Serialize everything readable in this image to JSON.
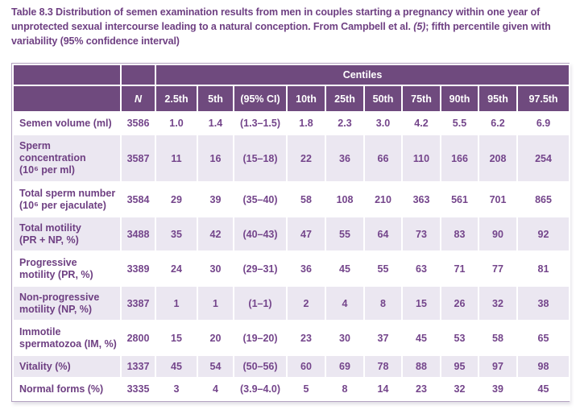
{
  "theme": {
    "header_bg": "#6f4a7e",
    "row_alt_bg": "#ebe7f1",
    "text": "#6e3f82",
    "num_text": "#74458b",
    "outer_border": "#b3a2c0"
  },
  "caption": {
    "before_ref": "Table 8.3 Distribution of semen examination results from men in couples starting a pregnancy within one year of unprotected sexual intercourse leading to a natural conception. From Campbell et al. ",
    "ref": "(5)",
    "after_ref": "; fifth percentile given with variability (95% confidence interval)"
  },
  "table": {
    "centiles_header": "Centiles",
    "n_header": "N",
    "column_headers": [
      "2.5th",
      "5th",
      "(95% CI)",
      "10th",
      "25th",
      "50th",
      "75th",
      "90th",
      "95th",
      "97.5th"
    ],
    "rows": [
      {
        "label_lines": [
          "Semen volume (ml)"
        ],
        "n": "3586",
        "values": [
          "1.0",
          "1.4",
          "(1.3–1.5)",
          "1.8",
          "2.3",
          "3.0",
          "4.2",
          "5.5",
          "6.2",
          "6.9"
        ]
      },
      {
        "label_lines": [
          "Sperm",
          "concentration",
          "(10⁶ per ml)"
        ],
        "n": "3587",
        "values": [
          "11",
          "16",
          "(15–18)",
          "22",
          "36",
          "66",
          "110",
          "166",
          "208",
          "254"
        ]
      },
      {
        "label_lines": [
          "Total sperm number",
          "(10⁶ per ejaculate)"
        ],
        "n": "3584",
        "values": [
          "29",
          "39",
          "(35–40)",
          "58",
          "108",
          "210",
          "363",
          "561",
          "701",
          "865"
        ]
      },
      {
        "label_lines": [
          "Total motility",
          "(PR + NP, %)"
        ],
        "n": "3488",
        "values": [
          "35",
          "42",
          "(40–43)",
          "47",
          "55",
          "64",
          "73",
          "83",
          "90",
          "92"
        ]
      },
      {
        "label_lines": [
          "Progressive",
          "motility (PR, %)"
        ],
        "n": "3389",
        "values": [
          "24",
          "30",
          "(29–31)",
          "36",
          "45",
          "55",
          "63",
          "71",
          "77",
          "81"
        ]
      },
      {
        "label_lines": [
          "Non-progressive",
          "motility (NP, %)"
        ],
        "n": "3387",
        "values": [
          "1",
          "1",
          "(1–1)",
          "2",
          "4",
          "8",
          "15",
          "26",
          "32",
          "38"
        ]
      },
      {
        "label_lines": [
          "Immotile",
          "spermatozoa (IM, %)"
        ],
        "n": "2800",
        "values": [
          "15",
          "20",
          "(19–20)",
          "23",
          "30",
          "37",
          "45",
          "53",
          "58",
          "65"
        ]
      },
      {
        "label_lines": [
          "Vitality (%)"
        ],
        "n": "1337",
        "values": [
          "45",
          "54",
          "(50–56)",
          "60",
          "69",
          "78",
          "88",
          "95",
          "97",
          "98"
        ]
      },
      {
        "label_lines": [
          "Normal forms (%)"
        ],
        "n": "3335",
        "values": [
          "3",
          "4",
          "(3.9–4.0)",
          "5",
          "8",
          "14",
          "23",
          "32",
          "39",
          "45"
        ]
      }
    ]
  }
}
